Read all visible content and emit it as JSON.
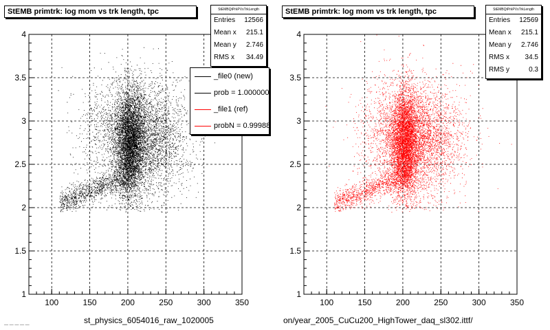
{
  "chart_data": [
    {
      "type": "scatter",
      "title": "StEMB primtrk: log mom vs trk length, tpc",
      "xlabel": "st_physics_6054016_raw_1020005",
      "ylabel": "",
      "xlim": [
        70,
        350
      ],
      "ylim": [
        1,
        4
      ],
      "x_ticks": [
        "100",
        "150",
        "200",
        "250",
        "300",
        "350"
      ],
      "y_ticks": [
        "1",
        "1.5",
        "2",
        "2.5",
        "3",
        "3.5",
        "4"
      ],
      "grid": true,
      "marker_color": "#000000",
      "stats": {
        "header": "StEMBQtPrkPVsTrkLength",
        "rows": [
          {
            "label": "Entries",
            "value": "12566"
          },
          {
            "label": "Mean x",
            "value": "215.1"
          },
          {
            "label": "Mean y",
            "value": "2.746"
          },
          {
            "label": "RMS x",
            "value": "34.49"
          }
        ]
      },
      "legend": {
        "placement": "top-right",
        "entries": [
          {
            "label": "_file0 (new)",
            "color": "#000000"
          },
          {
            "label": "prob = 1.000000",
            "color": "#000000"
          },
          {
            "label": "_file1 (ref)",
            "color": "#ff0000"
          },
          {
            "label": "probN = 0.99988",
            "color": "#ff0000"
          }
        ]
      },
      "distribution": {
        "entries": 12566,
        "mean_x": 215.1,
        "mean_y": 2.746,
        "rms_x": 34.49
      }
    },
    {
      "type": "scatter",
      "title": "StEMB primtrk: log mom vs trk length, tpc",
      "xlabel": "on/year_2005_CuCu200_HighTower_daq_sl302.ittf/",
      "ylabel": "",
      "xlim": [
        70,
        350
      ],
      "ylim": [
        1,
        4
      ],
      "x_ticks": [
        "100",
        "150",
        "200",
        "250",
        "300",
        "350"
      ],
      "y_ticks": [
        "1",
        "1.5",
        "2",
        "2.5",
        "3",
        "3.5",
        "4"
      ],
      "grid": true,
      "marker_color": "#ff0000",
      "stats": {
        "header": "StEMBQtPrkPVsTrkLength",
        "rows": [
          {
            "label": "Entries",
            "value": "12569"
          },
          {
            "label": "Mean x",
            "value": "215.1"
          },
          {
            "label": "Mean y",
            "value": "2.746"
          },
          {
            "label": "RMS x",
            "value": "34.5"
          },
          {
            "label": "RMS y",
            "value": "0.3"
          }
        ]
      },
      "distribution": {
        "entries": 12569,
        "mean_x": 215.1,
        "mean_y": 2.746,
        "rms_x": 34.5,
        "rms_y": 0.3
      }
    }
  ],
  "footer_text": "— — — — —"
}
